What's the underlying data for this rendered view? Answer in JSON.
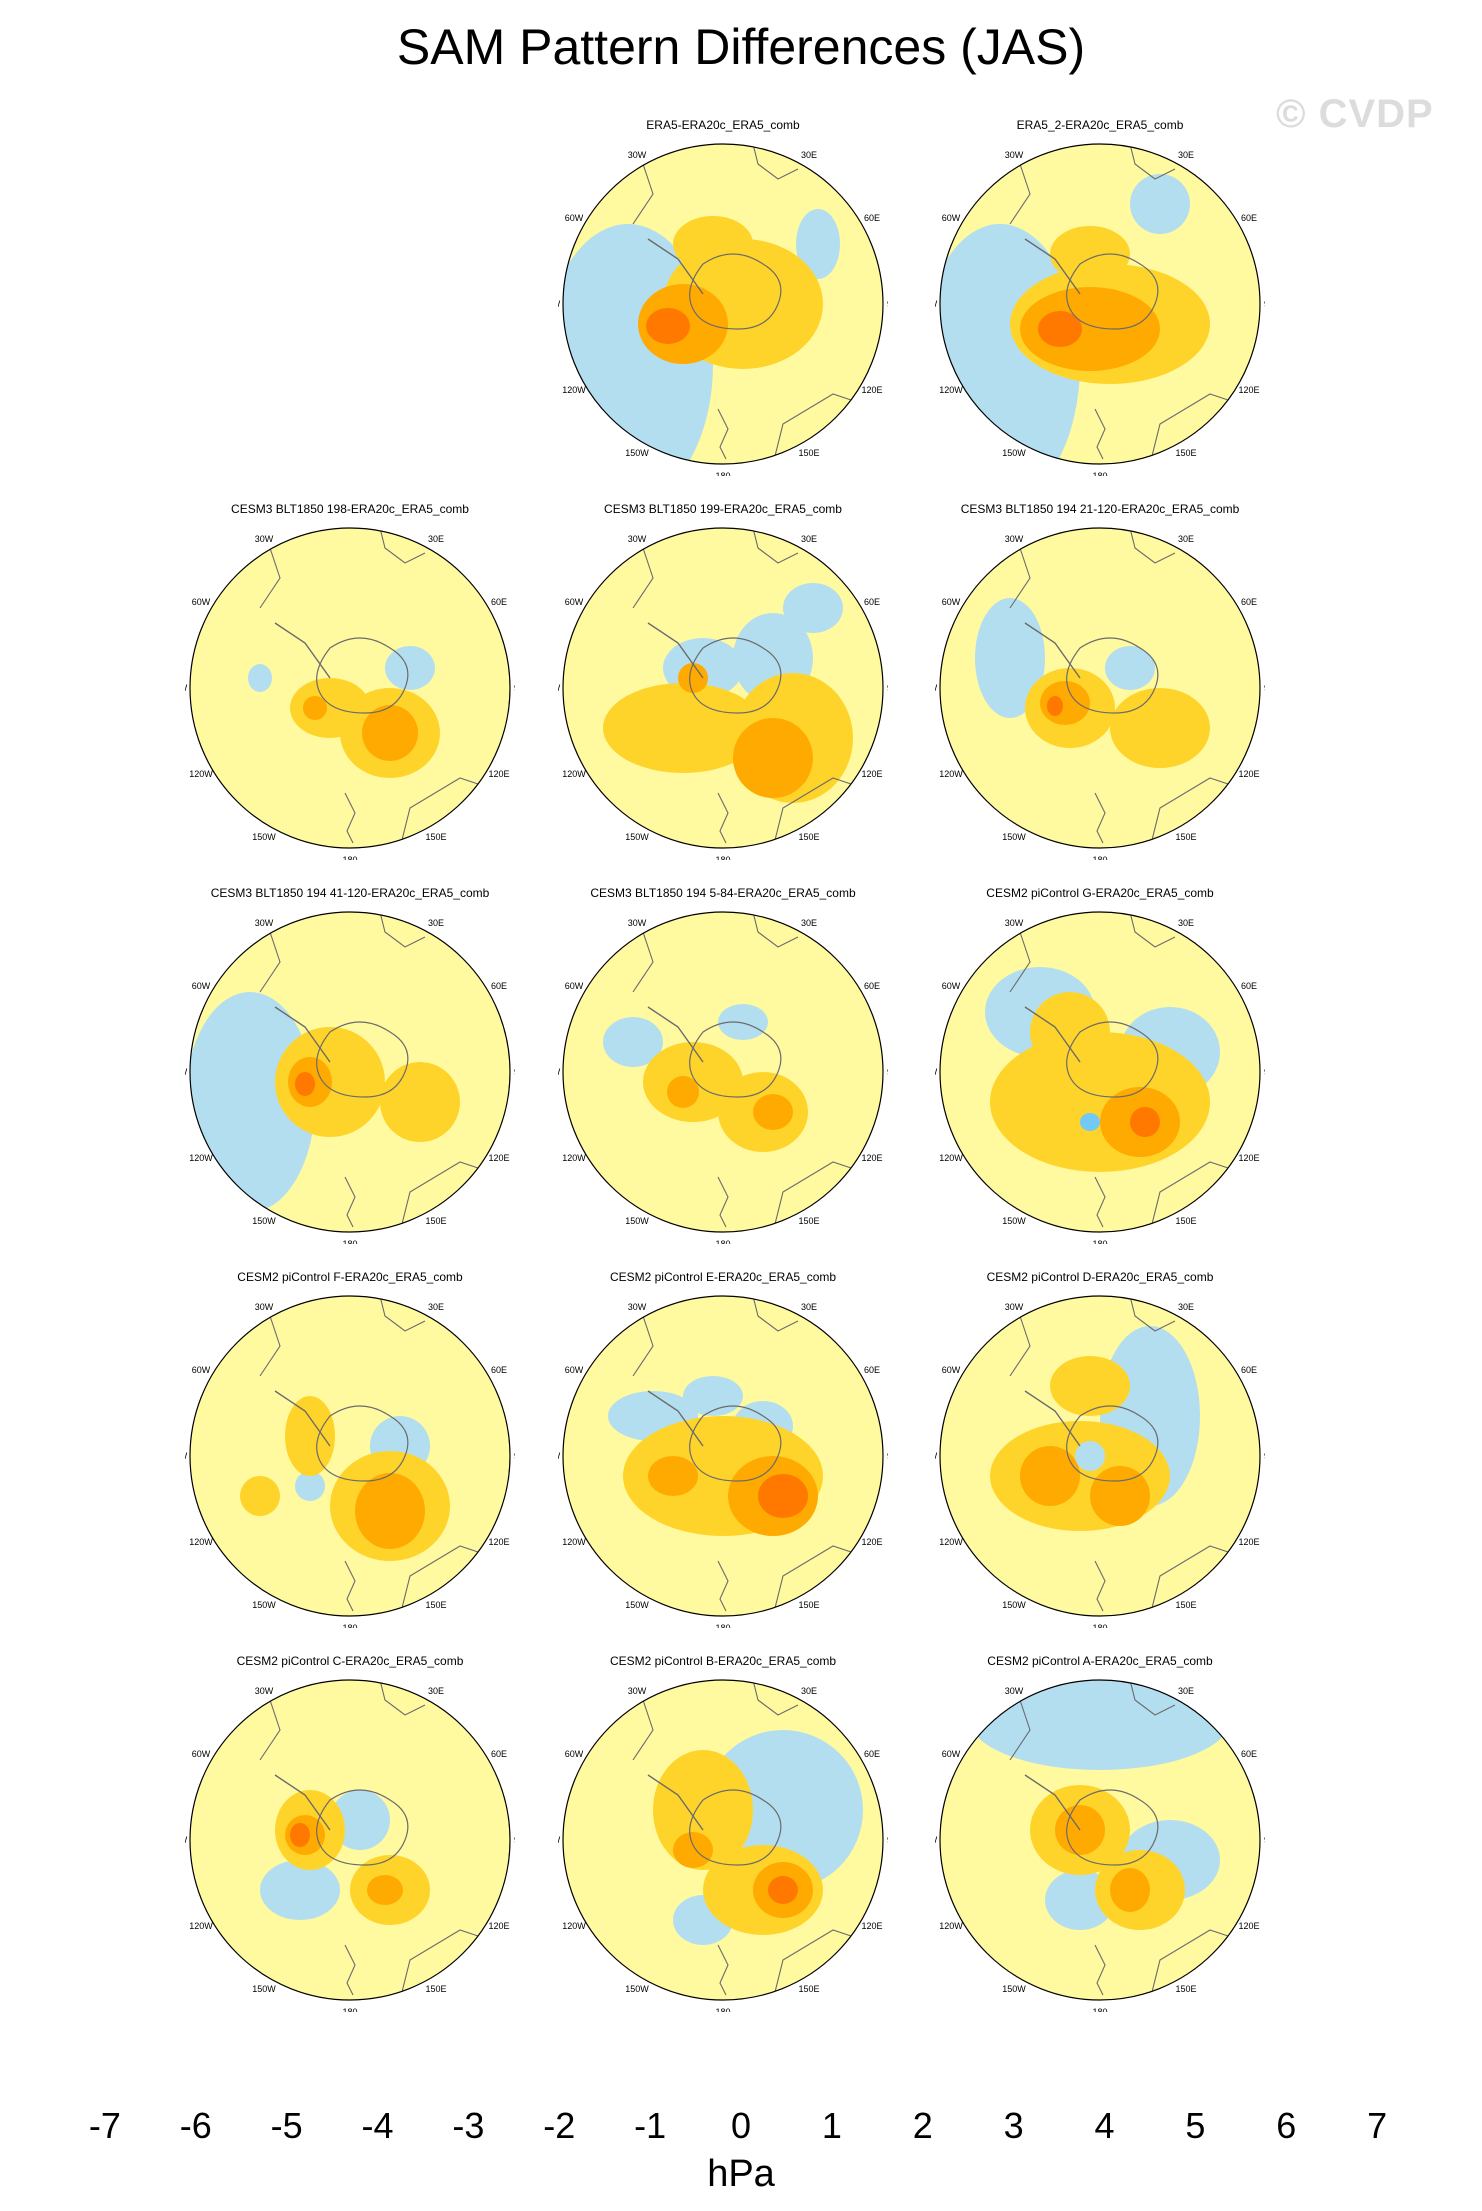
{
  "title": "SAM Pattern Differences (JAS)",
  "watermark": "© CVDP",
  "units": "hPa",
  "colorbar": {
    "labels": [
      "-7",
      "-6",
      "-5",
      "-4",
      "-3",
      "-2",
      "-1",
      "0",
      "1",
      "2",
      "3",
      "4",
      "5",
      "6",
      "7"
    ],
    "colors": [
      "#8a1cff",
      "#1e10ff",
      "#2e3ef0",
      "#2f72f0",
      "#1e96ff",
      "#00c0ff",
      "#73c8f5",
      "#b3def0",
      "#fff9a0",
      "#ffd42a",
      "#ffaa00",
      "#ff7800",
      "#ff2a00",
      "#ee0000",
      "#d01c1c",
      "#ffb4b4"
    ]
  },
  "longitude_labels": [
    "0",
    "30E",
    "60E",
    "90E",
    "120E",
    "150E",
    "180",
    "150W",
    "120W",
    "90W",
    "60W",
    "30W"
  ],
  "panels": [
    {
      "title": "ERA5-ERA20c_ERA5_comb",
      "row": 0,
      "col": 1
    },
    {
      "title": "ERA5_2-ERA20c_ERA5_comb",
      "row": 0,
      "col": 2
    },
    {
      "title": "CESM3 BLT1850 198-ERA20c_ERA5_comb",
      "row": 1,
      "col": 0
    },
    {
      "title": "CESM3 BLT1850 199-ERA20c_ERA5_comb",
      "row": 1,
      "col": 1
    },
    {
      "title": "CESM3 BLT1850 194 21-120-ERA20c_ERA5_comb",
      "row": 1,
      "col": 2
    },
    {
      "title": "CESM3 BLT1850 194 41-120-ERA20c_ERA5_comb",
      "row": 2,
      "col": 0
    },
    {
      "title": "CESM3 BLT1850 194 5-84-ERA20c_ERA5_comb",
      "row": 2,
      "col": 1
    },
    {
      "title": "CESM2 piControl G-ERA20c_ERA5_comb",
      "row": 2,
      "col": 2
    },
    {
      "title": "CESM2 piControl F-ERA20c_ERA5_comb",
      "row": 3,
      "col": 0
    },
    {
      "title": "CESM2 piControl E-ERA20c_ERA5_comb",
      "row": 3,
      "col": 1
    },
    {
      "title": "CESM2 piControl D-ERA20c_ERA5_comb",
      "row": 3,
      "col": 2
    },
    {
      "title": "CESM2 piControl C-ERA20c_ERA5_comb",
      "row": 4,
      "col": 0
    },
    {
      "title": "CESM2 piControl B-ERA20c_ERA5_comb",
      "row": 4,
      "col": 1
    },
    {
      "title": "CESM2 piControl A-ERA20c_ERA5_comb",
      "row": 4,
      "col": 2
    }
  ]
}
